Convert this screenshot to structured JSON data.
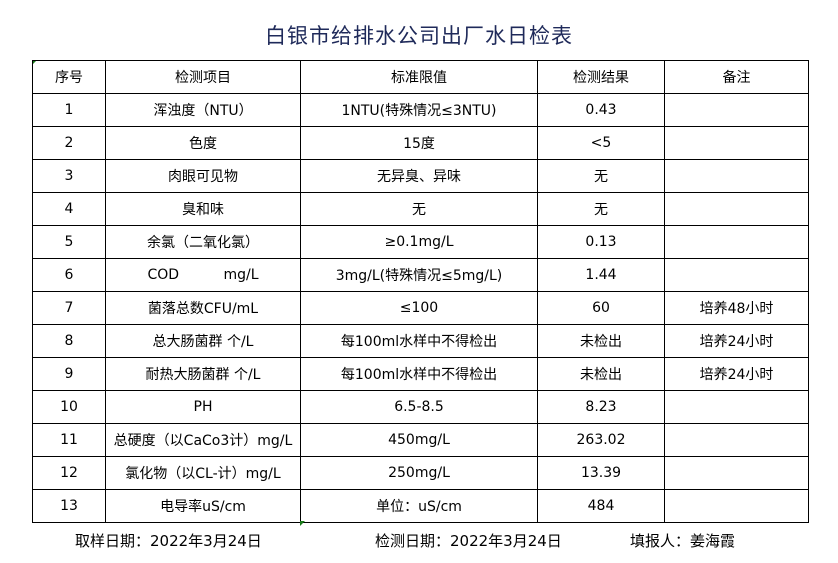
{
  "title": "白银市给排水公司出厂水日检表",
  "headers": [
    "序号",
    "检测项目",
    "标准限值",
    "检测结果",
    "备注"
  ],
  "rows": [
    [
      "1",
      "浑浊度（NTU）",
      "1NTU(特殊情况≤3NTU)",
      "0.43",
      ""
    ],
    [
      "2",
      "色度",
      "15度",
      "<5",
      ""
    ],
    [
      "3",
      "肉眼可见物",
      "无异臭、异味",
      "无",
      ""
    ],
    [
      "4",
      "臭和味",
      "无",
      "无",
      ""
    ],
    [
      "5",
      "余氯（二氧化氯）",
      "≥0.1mg/L",
      "0.13",
      ""
    ],
    [
      "6",
      "COD          mg/L",
      "3mg/L(特殊情况≤5mg/L)",
      "1.44",
      ""
    ],
    [
      "7",
      "菌落总数CFU/mL",
      "≤100",
      "60",
      "培养48小时"
    ],
    [
      "8",
      "总大肠菌群 个/L",
      "每100ml水样中不得检出",
      "未检出",
      "培养24小时"
    ],
    [
      "9",
      "耐热大肠菌群 个/L",
      "每100ml水样中不得检出",
      "未检出",
      "培养24小时"
    ],
    [
      "10",
      "PH",
      "6.5-8.5",
      "8.23",
      ""
    ],
    [
      "11",
      "总硬度（以CaCo3计）mg/L",
      "450mg/L",
      "263.02",
      ""
    ],
    [
      "12",
      "氯化物（以CL-计）mg/L",
      "250mg/L",
      "13.39",
      ""
    ],
    [
      "13",
      "电导率uS/cm",
      "单位：uS/cm",
      "484",
      ""
    ]
  ],
  "footer": {
    "sampling_date": "取样日期：2022年3月24日",
    "test_date": "检测日期：2022年3月24日",
    "reporter": "填报人：姜海霞"
  }
}
